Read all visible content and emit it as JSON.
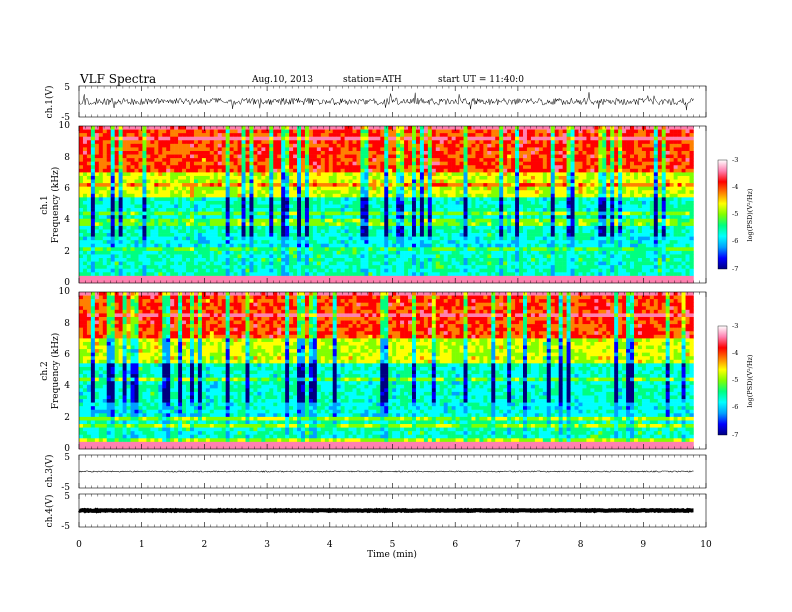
{
  "header": {
    "title": "VLF Spectra",
    "date": "Aug.10, 2013",
    "station": "station=ATH",
    "start": "start UT = 11:40:0"
  },
  "chart_data": [
    {
      "id": "ch1-waveform",
      "type": "line",
      "ylabel": "ch.1(V)",
      "yticks": [
        "5",
        "-5"
      ],
      "ylim": [
        -5,
        5
      ],
      "description": "noisy waveform near 0 V with spikes"
    },
    {
      "id": "ch1-spectrogram",
      "type": "heatmap",
      "ylabel_channel": "ch.1",
      "ylabel": "Frequency (kHz)",
      "yticks": [
        "0",
        "2",
        "4",
        "6",
        "8",
        "10"
      ],
      "ylim": [
        0,
        10
      ],
      "colorbar": {
        "label": "log(PSD)(V²/Hz)",
        "ticks": [
          "-3",
          "-4",
          "-5",
          "-6",
          "-7"
        ],
        "range": [
          -7,
          -3
        ]
      }
    },
    {
      "id": "ch2-spectrogram",
      "type": "heatmap",
      "ylabel_channel": "ch.2",
      "ylabel": "Frequency (kHz)",
      "yticks": [
        "0",
        "2",
        "4",
        "6",
        "8",
        "10"
      ],
      "ylim": [
        0,
        10
      ],
      "colorbar": {
        "label": "log(PSD)(V²/Hz)",
        "ticks": [
          "-3",
          "-4",
          "-5",
          "-6",
          "-7"
        ],
        "range": [
          -7,
          -3
        ]
      }
    },
    {
      "id": "ch3-waveform",
      "type": "line",
      "ylabel": "ch.3(V)",
      "yticks": [
        "5",
        "-5"
      ],
      "ylim": [
        -5,
        5
      ]
    },
    {
      "id": "ch4-waveform",
      "type": "line",
      "ylabel": "ch.4(V)",
      "yticks": [
        "5",
        "-5"
      ],
      "ylim": [
        -5,
        5
      ]
    }
  ],
  "xaxis": {
    "label": "Time (min)",
    "ticks": [
      "0",
      "1",
      "2",
      "3",
      "4",
      "5",
      "6",
      "7",
      "8",
      "9",
      "10"
    ],
    "range": [
      0,
      10
    ],
    "data_end": 9.8
  },
  "colors": {
    "colormap": [
      "#000080",
      "#0000ff",
      "#00a0ff",
      "#00ffff",
      "#00ff80",
      "#80ff00",
      "#ffff00",
      "#ff8000",
      "#ff0000",
      "#ff80b0",
      "#ffffff"
    ]
  }
}
